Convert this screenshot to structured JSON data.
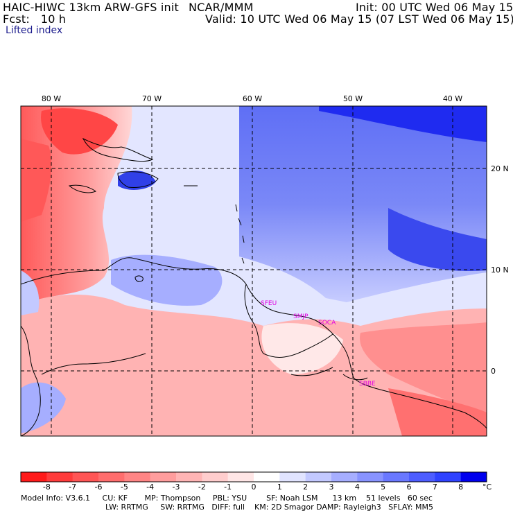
{
  "header": {
    "model": "HAIC-HIWC 13km ARW-GFS init",
    "center": "NCAR/MMM",
    "init": "Init: 00 UTC Wed 06 May 15",
    "fcst": "Fcst:   10 h",
    "valid": "Valid: 10 UTC Wed 06 May 15 (07 LST Wed 06 May 15)",
    "field": "Lifted index"
  },
  "map": {
    "lon_labels": [
      "80 W",
      "70 W",
      "60 W",
      "50 W",
      "40 W"
    ],
    "lon_values": [
      -80,
      -70,
      -60,
      -50,
      -40
    ],
    "lat_labels": [
      "20 N",
      "10 N",
      "0"
    ],
    "lat_values": [
      20,
      10,
      0
    ],
    "lon_range": [
      -84,
      -36.5
    ],
    "lat_range": [
      -6.5,
      26
    ],
    "stations": [
      {
        "code": "SFEU",
        "lon": -57.7,
        "lat": 6.5
      },
      {
        "code": "SMJP",
        "lon": -55.2,
        "lat": 5.4
      },
      {
        "code": "SOCA",
        "lon": -52.3,
        "lat": 4.8
      },
      {
        "code": "SBBE",
        "lon": -48.5,
        "lat": -1.4
      }
    ]
  },
  "colorbar": {
    "labels": [
      "-8",
      "-7",
      "-6",
      "-5",
      "-4",
      "-3",
      "-2",
      "-1",
      "0",
      "1",
      "2",
      "3",
      "4",
      "5",
      "6",
      "7",
      "8"
    ],
    "unit": "°C",
    "colors": [
      "#ff1a1a",
      "#ff3b3b",
      "#ff5555",
      "#ff6d6d",
      "#ff8585",
      "#ff9d9d",
      "#ffb5b5",
      "#ffcdcd",
      "#ffe6e6",
      "#ffffff",
      "#e1e4ff",
      "#c3c9ff",
      "#a6aeff",
      "#8893ff",
      "#6a78ff",
      "#4d5dff",
      "#2f42ff",
      "#0000ee"
    ]
  },
  "info": {
    "line1": "Model Info: V3.6.1     CU: KF       MP: Thompson     PBL: YSU        SF: Noah LSM      13 km    51 levels   60 sec",
    "line2": "LW: RRTMG     SW: RRTMG   DIFF: full    KM: 2D Smagor DAMP: Rayleigh3   SFLAY: MM5"
  }
}
